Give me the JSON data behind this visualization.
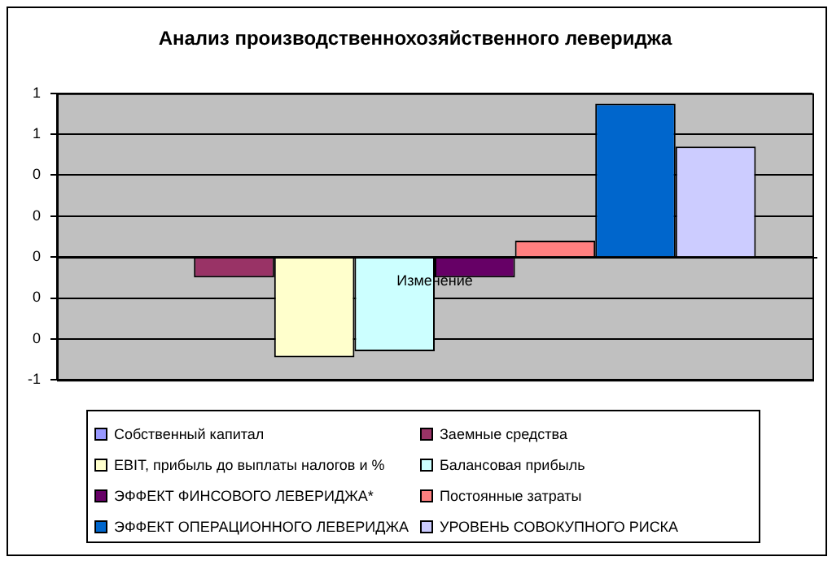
{
  "chart_data": {
    "type": "bar",
    "title": "Анализ производственнохозяйственного левериджа",
    "categories": [
      "Изменение"
    ],
    "series": [
      {
        "name": "Собственный капитал",
        "color": "#9999ff",
        "values": [
          0
        ]
      },
      {
        "name": "Заемные средства",
        "color": "#993366",
        "values": [
          -0.1
        ]
      },
      {
        "name": "EBIT, прибыль до выплаты налогов и %",
        "color": "#ffffcc",
        "values": [
          -0.49
        ]
      },
      {
        "name": "Балансовая прибыль",
        "color": "#ccffff",
        "values": [
          -0.46
        ]
      },
      {
        "name": "ЭФФЕКТ ФИНСОВОГО ЛЕВЕРИДЖА*",
        "color": "#660066",
        "values": [
          -0.1
        ]
      },
      {
        "name": "Постоянные затраты",
        "color": "#ff8080",
        "values": [
          0.08
        ]
      },
      {
        "name": "ЭФФЕКТ ОПЕРАЦИОННОГО ЛЕВЕРИДЖА",
        "color": "#0066cc",
        "values": [
          0.75
        ]
      },
      {
        "name": "УРОВЕНЬ СОВОКУПНОГО РИСКА",
        "color": "#ccccff",
        "values": [
          0.54
        ]
      }
    ],
    "ylim": [
      -0.6,
      0.8
    ],
    "yticks": [
      {
        "value": -0.6,
        "label": "-1"
      },
      {
        "value": -0.4,
        "label": "0"
      },
      {
        "value": -0.2,
        "label": "0"
      },
      {
        "value": 0,
        "label": "0"
      },
      {
        "value": 0.2,
        "label": "0"
      },
      {
        "value": 0.4,
        "label": "0"
      },
      {
        "value": 0.6,
        "label": "1"
      },
      {
        "value": 0.8,
        "label": "1"
      }
    ],
    "grid": "y",
    "legend": "bottom"
  }
}
